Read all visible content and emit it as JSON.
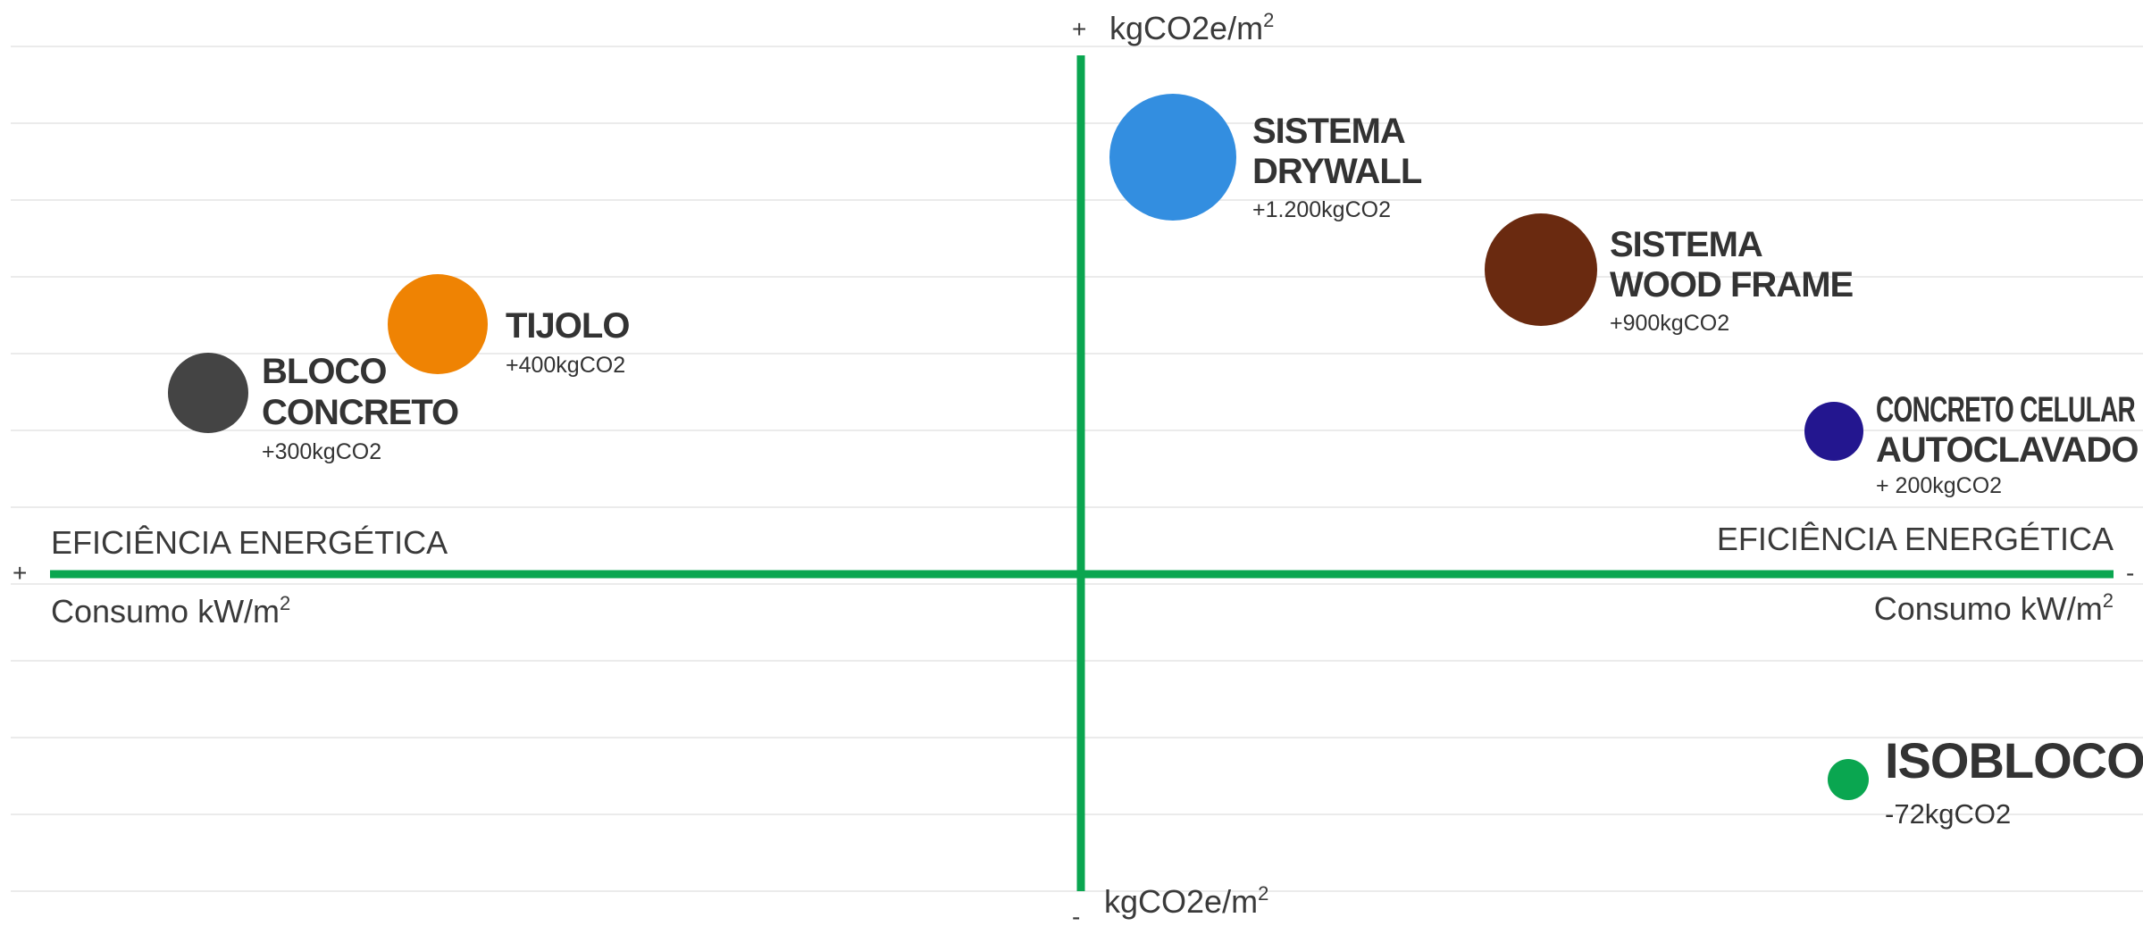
{
  "chart_data": {
    "type": "scatter",
    "title": "",
    "axes": {
      "y_top_sign": "+",
      "y_top_label": "kgCO2e/m",
      "y_bottom_sign": "-",
      "y_bottom_label": "kgCO2e/m",
      "unit_superscript": "2",
      "x_left_sign": "+",
      "x_right_sign": "-",
      "x_title_left": "EFICIÊNCIA ENERGÉTICA",
      "x_title_right": "EFICIÊNCIA ENERGÉTICA",
      "x_sub_left": "Consumo kW/m",
      "x_sub_right": "Consumo kW/m",
      "grid": true
    },
    "points": [
      {
        "id": "bloco-concreto",
        "name_lines": [
          "BLOCO",
          "CONCRETO"
        ],
        "value_label": "+300kgCO2",
        "color": "#444444",
        "size": "large"
      },
      {
        "id": "tijolo",
        "name_lines": [
          "TIJOLO"
        ],
        "value_label": "+400kgCO2",
        "color": "#ef8303",
        "size": "large"
      },
      {
        "id": "sistema-drywall",
        "name_lines": [
          "SISTEMA",
          "DRYWALL"
        ],
        "value_label": "+1.200kgCO2",
        "color": "#338ee0",
        "size": "xlarge"
      },
      {
        "id": "sistema-wood-frame",
        "name_lines": [
          "SISTEMA",
          "WOOD FRAME"
        ],
        "value_label": "+900kgCO2",
        "color": "#6a2a10",
        "size": "large"
      },
      {
        "id": "concreto-celular",
        "name_lines": [
          "CONCRETO CELULAR",
          "AUTOCLAVADO"
        ],
        "value_label": "+ 200kgCO2",
        "color": "#23168f",
        "size": "medium"
      },
      {
        "id": "isobloco",
        "name_lines": [
          "ISOBLOCO"
        ],
        "value_label": "-72kgCO2",
        "color": "#0aa650",
        "size": "small",
        "emphasis": true
      }
    ]
  }
}
